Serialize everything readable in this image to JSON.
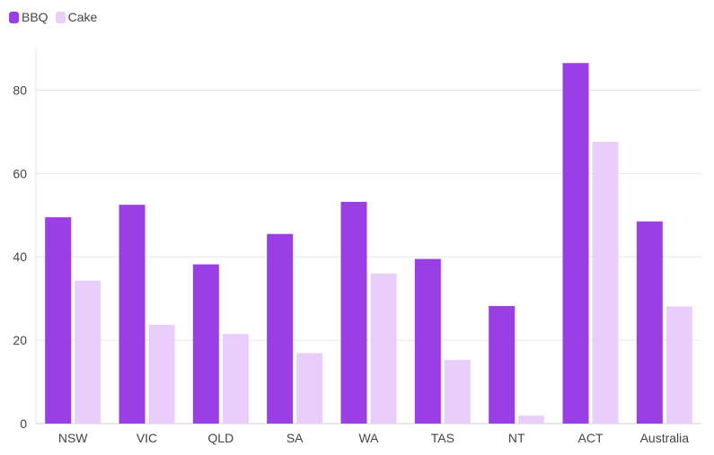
{
  "chart_data": {
    "type": "bar",
    "title": "",
    "xlabel": "",
    "ylabel": "",
    "categories": [
      "NSW",
      "VIC",
      "QLD",
      "SA",
      "WA",
      "TAS",
      "NT",
      "ACT",
      "Australia"
    ],
    "series": [
      {
        "name": "BBQ",
        "color": "#9a3ee6",
        "values": [
          49.5,
          52.5,
          38.2,
          45.5,
          53.2,
          39.5,
          28.2,
          86.5,
          48.5
        ]
      },
      {
        "name": "Cake",
        "color": "#e9cdfb",
        "values": [
          34.3,
          23.7,
          21.5,
          16.9,
          36.0,
          15.3,
          1.9,
          67.6,
          28.1
        ]
      }
    ],
    "ylim": [
      0,
      90
    ],
    "yticks": [
      0,
      20,
      40,
      60,
      80
    ],
    "grid": true,
    "legend_position": "top-left"
  }
}
